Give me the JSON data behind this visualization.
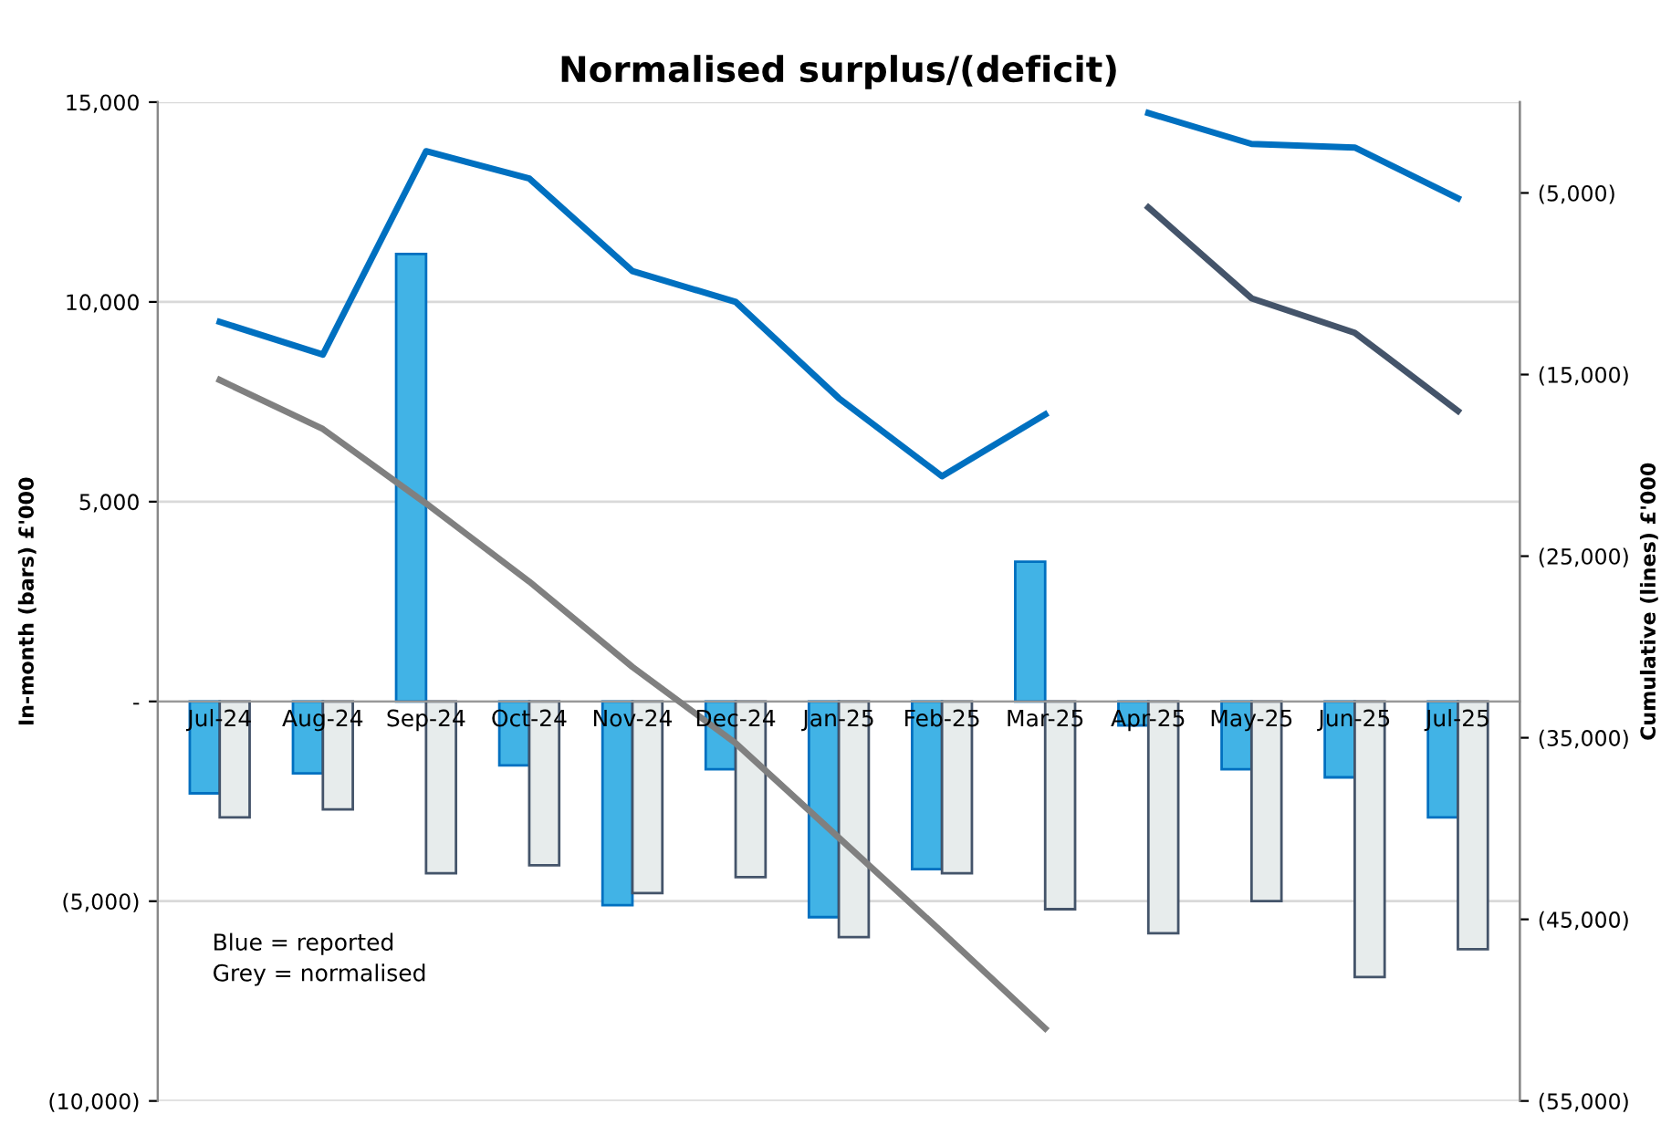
{
  "chart_data": {
    "type": "bar",
    "title": "Normalised surplus/(deficit)",
    "ylabel": "In-month (bars) £'000",
    "y2label": "Cumulative (lines) £'000",
    "categories": [
      "Jul-24",
      "Aug-24",
      "Sep-24",
      "Oct-24",
      "Nov-24",
      "Dec-24",
      "Jan-25",
      "Feb-25",
      "Mar-25",
      "Apr-25",
      "May-25",
      "Jun-25",
      "Jul-25"
    ],
    "series": [
      {
        "color": "#41b3e6",
        "values": [
          -2300,
          -1800,
          11200,
          -1600,
          -5100,
          -1700,
          -5400,
          -4200,
          3500,
          -600,
          -1700,
          -1900,
          -2900
        ]
      },
      {
        "color": "#e7ecec",
        "values": [
          -2900,
          -2700,
          -4300,
          -4100,
          -4800,
          -4400,
          -5900,
          -4300,
          -5200,
          -5800,
          -5000,
          -6900,
          -6200
        ]
      },
      {
        "type": "line",
        "axis": "y2",
        "color": "#0070c0",
        "values": [
          -12100,
          -13900,
          -2700,
          -4200,
          -9300,
          -11000,
          -16300,
          -20600,
          -17200,
          null,
          null,
          null,
          null
        ]
      },
      {
        "type": "line",
        "axis": "y2",
        "color": "#0070c0",
        "values": [
          null,
          null,
          null,
          null,
          null,
          null,
          null,
          null,
          null,
          -600,
          -2300,
          -2500,
          -5300
        ]
      },
      {
        "type": "line",
        "axis": "y2",
        "color": "#808080",
        "values": [
          -15300,
          -18000,
          -22100,
          -26400,
          -31100,
          -35300,
          -40500,
          -45700,
          -51000,
          null,
          null,
          null,
          null
        ]
      },
      {
        "type": "line",
        "axis": "y2",
        "color": "#44546a",
        "values": [
          null,
          null,
          null,
          null,
          null,
          null,
          null,
          null,
          null,
          -5800,
          -10800,
          -12700,
          -17000
        ]
      }
    ],
    "ylim": [
      -10000,
      15000
    ],
    "yticks": [
      {
        "value": -10000,
        "label": "(10,000)"
      },
      {
        "value": -5000,
        "label": "(5,000)"
      },
      {
        "value": 0,
        "label": "-"
      },
      {
        "value": 5000,
        "label": "5,000"
      },
      {
        "value": 10000,
        "label": "10,000"
      },
      {
        "value": 15000,
        "label": "15,000"
      }
    ],
    "y2lim": [
      -55000,
      0
    ],
    "y2ticks": [
      {
        "value": -55000,
        "label": "(55,000)"
      },
      {
        "value": -45000,
        "label": "(45,000)"
      },
      {
        "value": -35000,
        "label": "(35,000)"
      },
      {
        "value": -25000,
        "label": "(25,000)"
      },
      {
        "value": -15000,
        "label": "(15,000)"
      },
      {
        "value": -5000,
        "label": "(5,000)"
      }
    ],
    "annotations": [
      "Blue = reported\nGrey = normalised"
    ],
    "grid": "y",
    "legend": false,
    "line_style": "solid",
    "marker": "none"
  }
}
